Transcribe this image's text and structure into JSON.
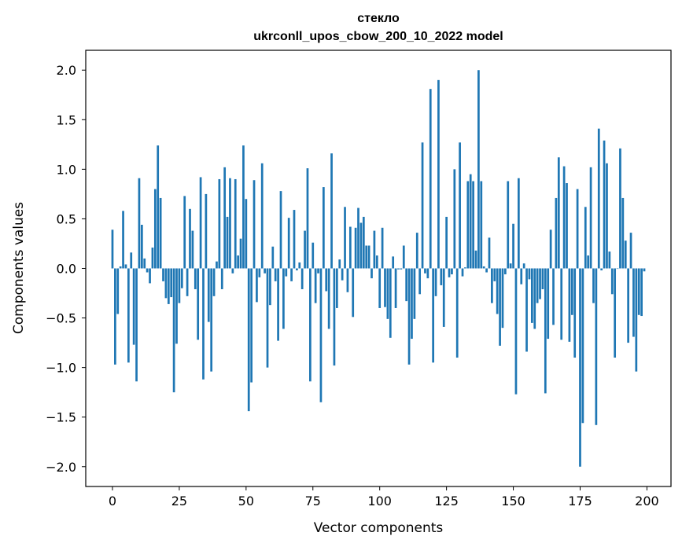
{
  "chart_data": {
    "type": "bar",
    "title_line1": "стекло",
    "title_line2": "ukrconll_upos_cbow_200_10_2022 model",
    "xlabel": "Vector components",
    "ylabel": "Components values",
    "xlim": [
      -10,
      209
    ],
    "ylim": [
      -2.2,
      2.2
    ],
    "grid": false,
    "bar_color": "#1f77b4",
    "x_ticks": [
      0,
      25,
      50,
      75,
      100,
      125,
      150,
      175,
      200
    ],
    "y_ticks": [
      2.0,
      1.5,
      1.0,
      0.5,
      0.0,
      -0.5,
      -1.0,
      -1.5,
      -2.0
    ],
    "x_tick_labels": [
      "0",
      "25",
      "50",
      "75",
      "100",
      "125",
      "150",
      "175",
      "200"
    ],
    "y_tick_labels": [
      "2.0",
      "1.5",
      "1.0",
      "0.5",
      "0.0",
      "−0.5",
      "−1.0",
      "−1.5",
      "−2.0"
    ],
    "values": [
      0.39,
      -0.97,
      -0.46,
      0.02,
      0.58,
      0.04,
      -0.95,
      0.16,
      -0.77,
      -1.14,
      0.91,
      0.44,
      0.1,
      -0.04,
      -0.15,
      0.21,
      0.8,
      1.24,
      0.71,
      -0.13,
      -0.3,
      -0.36,
      -0.29,
      -1.25,
      -0.76,
      -0.35,
      -0.2,
      0.73,
      -0.28,
      0.6,
      0.38,
      -0.21,
      -0.72,
      0.92,
      -1.12,
      0.75,
      -0.54,
      -1.04,
      -0.28,
      0.07,
      0.9,
      -0.21,
      1.02,
      0.52,
      0.91,
      -0.05,
      0.9,
      0.13,
      0.3,
      1.24,
      0.7,
      -1.44,
      -1.15,
      0.89,
      -0.34,
      -0.09,
      1.06,
      -0.05,
      -1.0,
      -0.37,
      0.22,
      -0.13,
      -0.73,
      0.78,
      -0.61,
      -0.08,
      0.51,
      -0.13,
      0.59,
      -0.02,
      0.06,
      -0.21,
      0.38,
      1.01,
      -1.14,
      0.26,
      -0.35,
      -0.05,
      -1.35,
      0.82,
      -0.23,
      -0.61,
      1.16,
      -0.98,
      -0.4,
      0.09,
      -0.12,
      0.62,
      -0.24,
      0.42,
      -0.49,
      0.41,
      0.61,
      0.46,
      0.52,
      0.23,
      0.23,
      -0.1,
      0.38,
      0.13,
      -0.4,
      0.41,
      -0.39,
      -0.51,
      -0.7,
      0.12,
      -0.4,
      -0.01,
      -0.01,
      0.23,
      -0.33,
      -0.97,
      -0.71,
      -0.51,
      0.36,
      -0.26,
      1.27,
      -0.05,
      -0.1,
      1.81,
      -0.95,
      -0.28,
      1.9,
      -0.17,
      -0.59,
      0.52,
      -0.09,
      -0.06,
      1.0,
      -0.9,
      1.27,
      -0.08,
      0.01,
      0.88,
      0.95,
      0.88,
      0.18,
      2.0,
      0.88,
      0.02,
      -0.04,
      0.31,
      -0.35,
      -0.13,
      -0.46,
      -0.78,
      -0.6,
      -0.06,
      0.88,
      0.05,
      0.45,
      -1.27,
      0.91,
      -0.16,
      0.05,
      -0.84,
      -0.11,
      -0.55,
      -0.61,
      -0.35,
      -0.31,
      -0.21,
      -1.26,
      -0.71,
      0.39,
      -0.57,
      0.71,
      1.12,
      -0.72,
      1.03,
      0.86,
      -0.74,
      -0.47,
      -0.9,
      0.8,
      -2.0,
      -1.56,
      0.62,
      0.13,
      1.02,
      -0.35,
      -1.58,
      1.41,
      -0.02,
      1.29,
      1.06,
      0.17,
      -0.26,
      -0.9,
      -0.0,
      1.21,
      0.71,
      0.28,
      -0.75,
      0.36,
      -0.69,
      -1.04,
      -0.47,
      -0.48,
      -0.03
    ]
  }
}
